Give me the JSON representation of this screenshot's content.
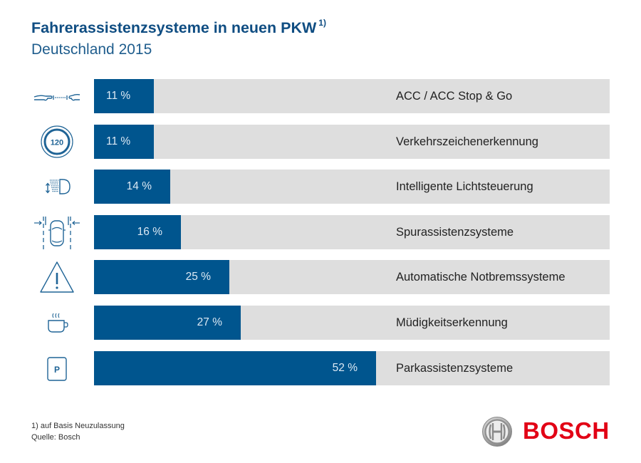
{
  "header": {
    "title": "Fahrerassistenzsysteme in neuen PKW",
    "title_footnote_mark": "1)",
    "subtitle": "Deutschland 2015"
  },
  "colors": {
    "bar": "#00558e",
    "track": "#dedede",
    "title": "#0f4d82",
    "icon": "#1f6496",
    "logo_red": "#e20015"
  },
  "chart_data": {
    "type": "bar",
    "orientation": "horizontal",
    "title": "Fahrerassistenzsysteme in neuen PKW",
    "subtitle": "Deutschland 2015",
    "unit": "%",
    "xlim": [
      0,
      100
    ],
    "grid": false,
    "categories": [
      "ACC / ACC Stop & Go",
      "Verkehrszeichenerkennung",
      "Intelligente Lichtsteuerung",
      "Spurassistenzsysteme",
      "Automatische Notbremssysteme",
      "Müdigkeitserkennung",
      "Parkassistenzsysteme"
    ],
    "values": [
      11,
      11,
      14,
      16,
      25,
      27,
      52
    ],
    "value_labels": [
      "11 %",
      "11 %",
      "14 %",
      "16 %",
      "25 %",
      "27 %",
      "52 %"
    ],
    "icons": [
      "acc-distance-icon",
      "speed-sign-icon",
      "headlight-icon",
      "lane-assist-icon",
      "warning-triangle-icon",
      "coffee-cup-icon",
      "parking-icon"
    ],
    "icon_texts": [
      "",
      "120",
      "",
      "",
      "",
      "",
      "P"
    ]
  },
  "footer": {
    "footnote": "1) auf Basis Neuzulassung",
    "source": "Quelle: Bosch",
    "logo_text": "BOSCH"
  }
}
